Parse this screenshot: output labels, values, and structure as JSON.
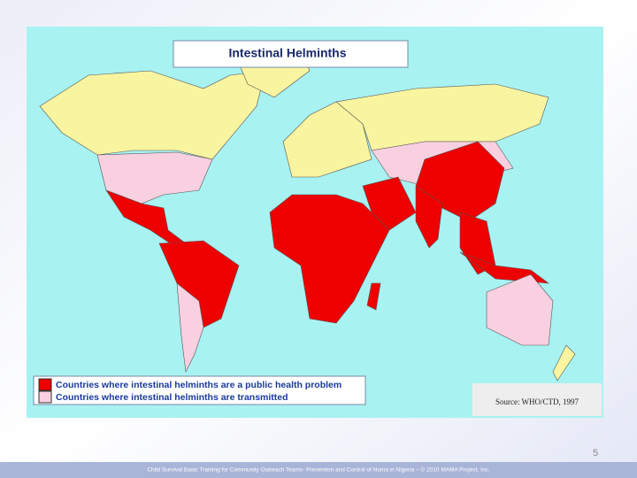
{
  "map": {
    "title": "Intestinal Helminths",
    "legend": [
      {
        "label": "Countries where intestinal helminths are a public health problem",
        "color": "#ee0000"
      },
      {
        "label": "Countries where intestinal helminths are transmitted",
        "color": "#f8d0e0"
      }
    ],
    "source": "Source: WHO/CTD, 1997"
  },
  "slide": {
    "page_number": "5",
    "footer": "Child Survival Basic Training for Community Outreach Teams- Prevention and Control of Noma in Nigeria – © 2010 MAMA Project, Inc."
  }
}
